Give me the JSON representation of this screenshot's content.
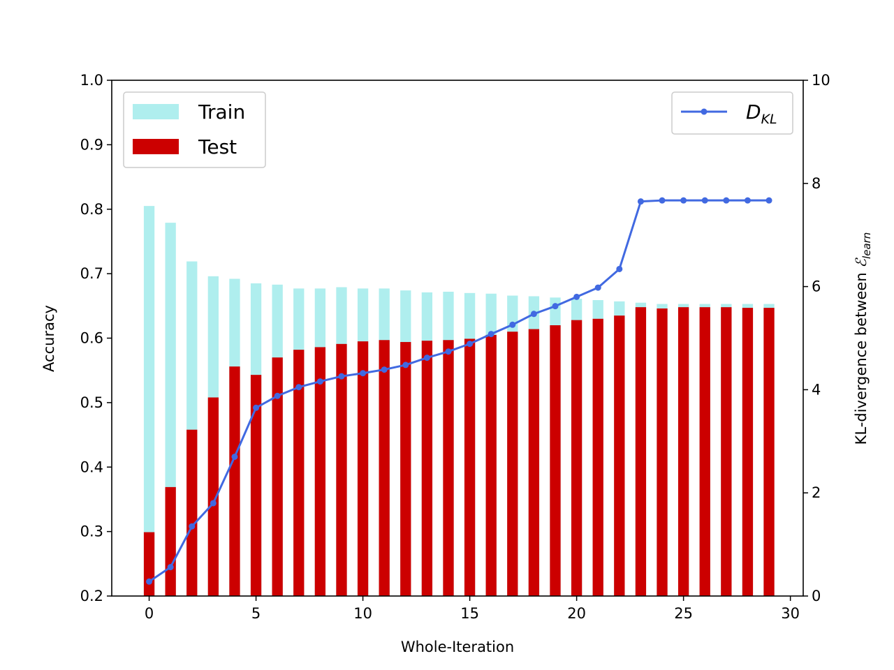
{
  "chart_data": {
    "type": "bar",
    "xlabel": "Whole-Iteration",
    "ylabel": "Accuracy",
    "y2label": "KL-divergence between ",
    "y2label_symbol": "ℰ",
    "y2label_sub": "learn",
    "x": [
      0,
      1,
      2,
      3,
      4,
      5,
      6,
      7,
      8,
      9,
      10,
      11,
      12,
      13,
      14,
      15,
      16,
      17,
      18,
      19,
      20,
      21,
      22,
      23,
      24,
      25,
      26,
      27,
      28,
      29
    ],
    "xlim": [
      -1.75,
      30.6
    ],
    "ylim": [
      0.2,
      1.0
    ],
    "y2lim": [
      0,
      10
    ],
    "xticks": [
      "0",
      "5",
      "10",
      "15",
      "20",
      "25",
      "30"
    ],
    "yticks": [
      "0.2",
      "0.3",
      "0.4",
      "0.5",
      "0.6",
      "0.7",
      "0.8",
      "0.9",
      "1.0"
    ],
    "y2ticks": [
      "0",
      "2",
      "4",
      "6",
      "8",
      "10"
    ],
    "grid": false,
    "series": [
      {
        "name": "Train",
        "kind": "bar",
        "color": "#afeeee",
        "values": [
          0.805,
          0.779,
          0.719,
          0.696,
          0.692,
          0.685,
          0.683,
          0.677,
          0.677,
          0.679,
          0.677,
          0.677,
          0.674,
          0.671,
          0.672,
          0.67,
          0.669,
          0.666,
          0.665,
          0.663,
          0.661,
          0.659,
          0.657,
          0.655,
          0.653,
          0.653,
          0.653,
          0.653,
          0.653,
          0.653
        ]
      },
      {
        "name": "Test",
        "kind": "bar",
        "color": "#cc0000",
        "values": [
          0.299,
          0.369,
          0.458,
          0.508,
          0.556,
          0.543,
          0.57,
          0.582,
          0.586,
          0.591,
          0.595,
          0.597,
          0.594,
          0.596,
          0.597,
          0.599,
          0.605,
          0.61,
          0.614,
          0.62,
          0.628,
          0.63,
          0.635,
          0.648,
          0.646,
          0.648,
          0.648,
          0.648,
          0.647,
          0.647
        ]
      },
      {
        "name": "D",
        "name_sub": "KL",
        "kind": "line",
        "axis": "right",
        "color": "#4169e1",
        "values": [
          0.28,
          0.56,
          1.35,
          1.8,
          2.7,
          3.65,
          3.88,
          4.05,
          4.16,
          4.26,
          4.32,
          4.39,
          4.48,
          4.62,
          4.74,
          4.89,
          5.08,
          5.26,
          5.47,
          5.62,
          5.8,
          5.98,
          6.34,
          7.65,
          7.67,
          7.67,
          7.67,
          7.67,
          7.67,
          7.67
        ]
      }
    ],
    "legend": [
      "upper-left",
      "upper-right"
    ]
  }
}
